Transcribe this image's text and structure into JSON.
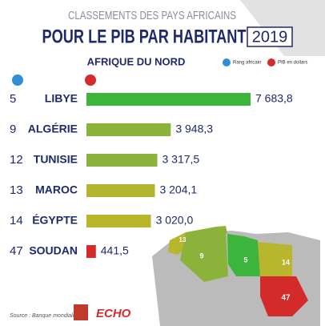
{
  "chart_data": {
    "type": "bar",
    "title": "CLASSEMENTS DES PAYS AFRICAINS",
    "subtitle": "POUR LE PIB PAR HABITANT",
    "year": "2019",
    "region": "AFRIQUE DU NORD",
    "legend": {
      "rank": "Rang africain",
      "gdp": "PIB en dollars"
    },
    "ranks": [
      "5",
      "9",
      "12",
      "13",
      "14",
      "47"
    ],
    "categories": [
      "LIBYE",
      "ALGÉRIE",
      "TUNISIE",
      "MAROC",
      "ÉGYPTE",
      "SOUDAN"
    ],
    "values": [
      7683.8,
      3948.3,
      3317.5,
      3204.1,
      3020.0,
      441.5
    ],
    "value_labels": [
      "7 683,8",
      "3 948,3",
      "3 317,5",
      "3 204,1",
      "3 020,0",
      "441,5"
    ],
    "colors": [
      "#3db43b",
      "#8bb23a",
      "#8bb23a",
      "#b4b52f",
      "#b8b62d",
      "#d42a2a"
    ],
    "source": "Source : Banque mondiale",
    "logo": "ECHO"
  }
}
